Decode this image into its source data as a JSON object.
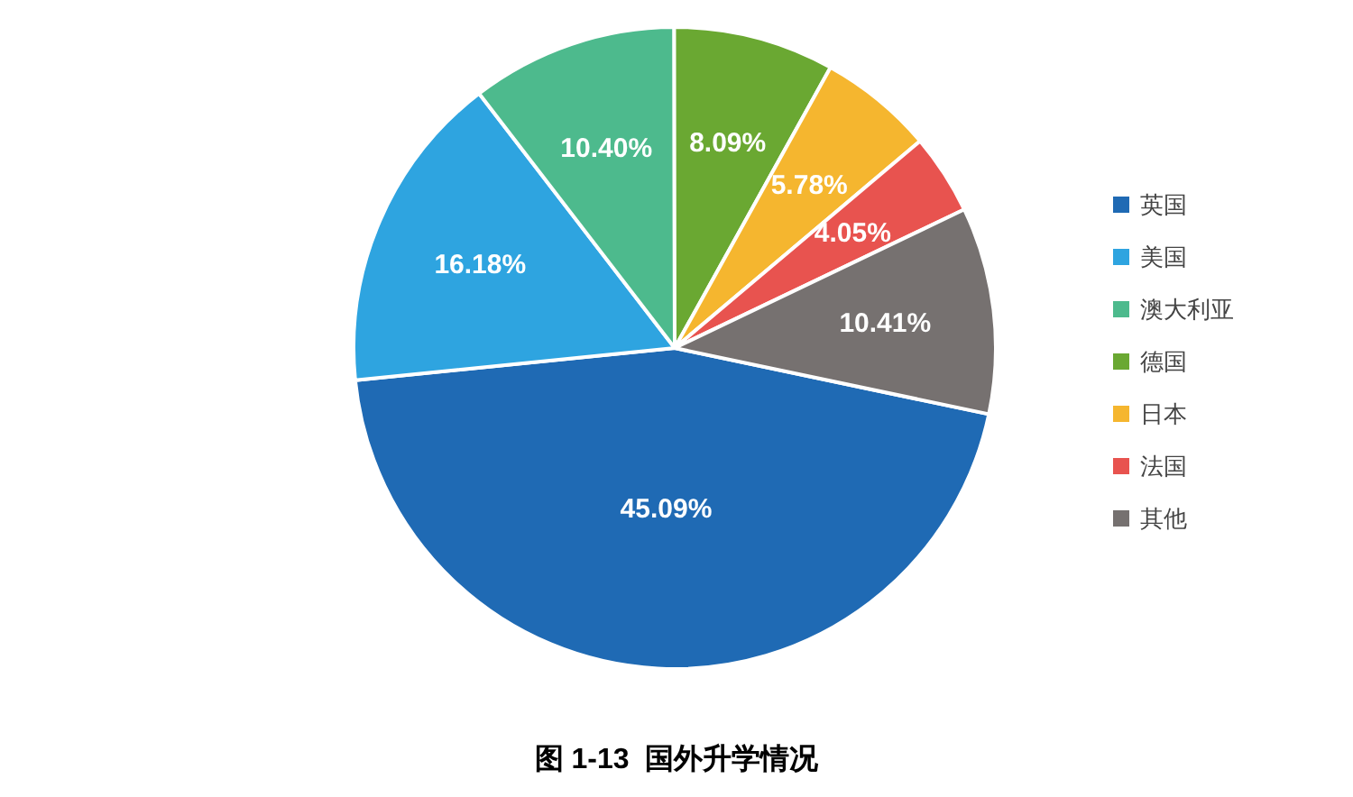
{
  "chart_data": {
    "type": "pie",
    "title": "图 1-13  国外升学情况",
    "categories": [
      "英国",
      "美国",
      "澳大利亚",
      "德国",
      "日本",
      "法国",
      "其他"
    ],
    "values": [
      45.09,
      16.18,
      10.4,
      8.09,
      5.78,
      4.05,
      10.41
    ],
    "value_labels": [
      "45.09%",
      "16.18%",
      "10.40%",
      "8.09%",
      "5.78%",
      "4.05%",
      "10.41%"
    ],
    "colors": [
      "#1f6ab4",
      "#2ea4e0",
      "#4dba8d",
      "#6aa832",
      "#f5b62f",
      "#e8534f",
      "#767170"
    ],
    "legend": "right"
  }
}
